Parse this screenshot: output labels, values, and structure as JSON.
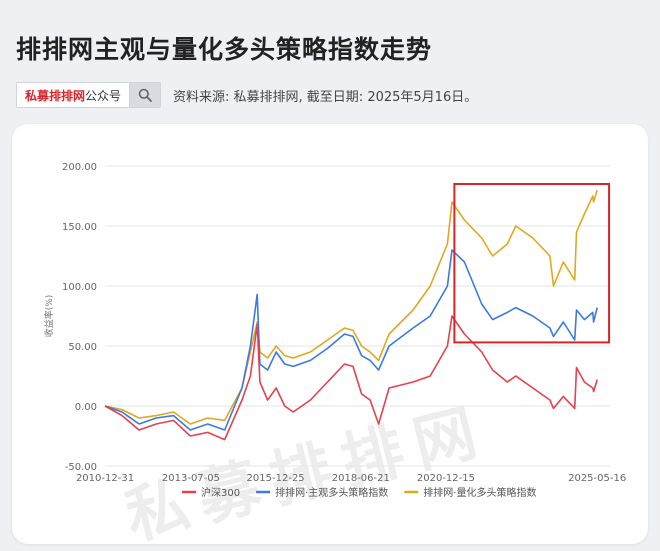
{
  "header": {
    "title": "排排网主观与量化多头策略指数走势",
    "brand": "私募排排网",
    "brand_suffix": "公众号",
    "source": "资料来源: 私募排排网, 截至日期: 2025年5月16日。"
  },
  "icons": {
    "search": "search-icon"
  },
  "watermark": "私募排排网",
  "colors": {
    "csi300": "#e3424e",
    "subjective": "#3a7be0",
    "quant": "#e0a81f",
    "highlight_box": "#d9252a",
    "grid": "#e6e6e6"
  },
  "chart_data": {
    "type": "line",
    "title": "",
    "ylabel": "收益率(%)",
    "ylim": [
      -50,
      200
    ],
    "yticks": [
      "200.00",
      "150.00",
      "100.00",
      "50.00",
      "0.00",
      "-50.00"
    ],
    "xlim": [
      "2010-12-31",
      "2025-09-30"
    ],
    "xticks": [
      "2010-12-31",
      "2013-07-05",
      "2015-12-25",
      "2018-06-21",
      "2020-12-15",
      "2025-05-16"
    ],
    "legend_position": "bottom",
    "highlight": {
      "x": [
        "2021-03-15",
        "2025-09-20"
      ],
      "y": [
        53,
        185
      ]
    },
    "x": [
      "2010-12-31",
      "2011-06-30",
      "2011-12-30",
      "2012-06-29",
      "2012-12-31",
      "2013-06-28",
      "2013-12-31",
      "2014-06-30",
      "2014-12-31",
      "2015-03-31",
      "2015-06-12",
      "2015-07-10",
      "2015-09-30",
      "2015-12-31",
      "2016-03-31",
      "2016-06-30",
      "2016-12-30",
      "2017-06-30",
      "2017-12-29",
      "2018-03-30",
      "2018-06-29",
      "2018-09-28",
      "2018-12-28",
      "2019-04-19",
      "2019-12-31",
      "2020-06-30",
      "2020-12-31",
      "2021-02-18",
      "2021-06-30",
      "2021-12-31",
      "2022-04-27",
      "2022-09-30",
      "2022-12-30",
      "2023-06-30",
      "2023-12-29",
      "2024-02-05",
      "2024-05-20",
      "2024-09-18",
      "2024-10-08",
      "2024-12-31",
      "2025-03-31",
      "2025-04-08",
      "2025-05-16"
    ],
    "series": [
      {
        "name": "沪深300",
        "values": [
          0,
          -8,
          -20,
          -15,
          -12,
          -25,
          -22,
          -28,
          5,
          25,
          68,
          20,
          5,
          15,
          0,
          -5,
          5,
          20,
          35,
          33,
          10,
          5,
          -15,
          15,
          20,
          25,
          50,
          75,
          60,
          45,
          30,
          20,
          25,
          15,
          5,
          -2,
          8,
          -2,
          32,
          20,
          15,
          12,
          22
        ]
      },
      {
        "name": "排排网·主观多头策略指数",
        "values": [
          0,
          -5,
          -15,
          -10,
          -8,
          -20,
          -15,
          -20,
          15,
          50,
          93,
          35,
          30,
          45,
          35,
          33,
          38,
          48,
          60,
          58,
          42,
          38,
          30,
          50,
          65,
          75,
          100,
          130,
          120,
          85,
          72,
          78,
          82,
          75,
          65,
          58,
          70,
          55,
          80,
          72,
          78,
          70,
          82
        ]
      },
      {
        "name": "排排网·量化多头策略指数",
        "values": [
          0,
          -3,
          -10,
          -8,
          -5,
          -15,
          -10,
          -12,
          15,
          45,
          70,
          45,
          40,
          50,
          42,
          40,
          45,
          55,
          65,
          63,
          50,
          45,
          38,
          60,
          80,
          100,
          135,
          170,
          155,
          140,
          125,
          135,
          150,
          140,
          125,
          100,
          120,
          105,
          145,
          160,
          175,
          170,
          180
        ]
      }
    ]
  }
}
